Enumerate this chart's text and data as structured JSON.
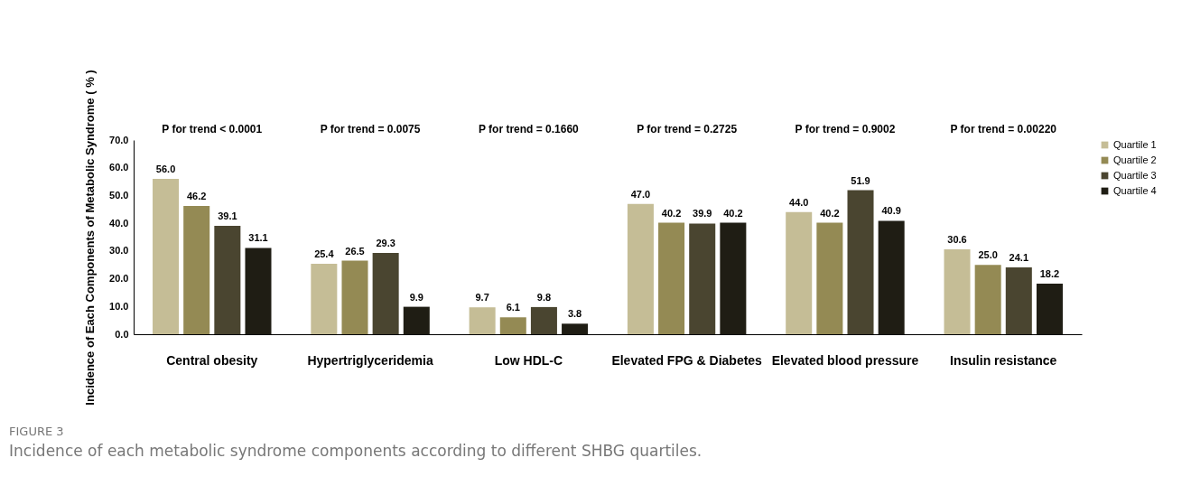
{
  "chart_data": {
    "type": "bar",
    "ylabel": "Incidence of Each Components of Metabolic Syndrome ( % )",
    "categories": [
      "Central obesity",
      "Hypertriglyceridemia",
      "Low HDL-C",
      "Elevated FPG & Diabetes",
      "Elevated blood pressure",
      "Insulin resistance"
    ],
    "series": [
      {
        "name": "Quartile 1",
        "color": "#c5bd96",
        "values": [
          56.0,
          25.4,
          9.7,
          47.0,
          44.0,
          30.6
        ],
        "value_labels": [
          "56.0",
          "25.4",
          "9.7",
          "47.0",
          "44.0",
          "30.6"
        ]
      },
      {
        "name": "Quartile 2",
        "color": "#948a54",
        "values": [
          46.2,
          26.5,
          6.1,
          40.2,
          40.2,
          25.0
        ],
        "value_labels": [
          "46.2",
          "26.5",
          "6.1",
          "40.2",
          "40.2",
          "25.0"
        ]
      },
      {
        "name": "Quartile 3",
        "color": "#4a4530",
        "values": [
          39.1,
          29.3,
          9.8,
          39.9,
          51.9,
          24.1
        ],
        "value_labels": [
          "39.1",
          "29.3",
          "9.8",
          "39.9",
          "51.9",
          "24.1"
        ]
      },
      {
        "name": "Quartile 4",
        "color": "#1f1d14",
        "values": [
          31.1,
          9.9,
          3.8,
          40.2,
          40.9,
          18.2
        ],
        "value_labels": [
          "31.1",
          "9.9",
          "3.8",
          "40.2",
          "40.9",
          "18.2"
        ]
      }
    ],
    "ylim": [
      0,
      70
    ],
    "yticks": [
      {
        "value": 0,
        "label": "0.0"
      },
      {
        "value": 10,
        "label": "10.0"
      },
      {
        "value": 20,
        "label": "20.0"
      },
      {
        "value": 30,
        "label": "30.0"
      },
      {
        "value": 40,
        "label": "40.0"
      },
      {
        "value": 50,
        "label": "50.0"
      },
      {
        "value": 60,
        "label": "60.0"
      },
      {
        "value": 70,
        "label": "70.0"
      }
    ],
    "grid": false,
    "legend": "right",
    "annotations": [
      "P for trend  <  0.0001",
      "P for trend = 0.0075",
      "P for trend = 0.1660",
      "P for trend = 0.2725",
      "P for trend = 0.9002",
      "P for trend = 0.00220",
      "FIGURE 3",
      "Incidence of each metabolic syndrome components according to different SHBG quartiles."
    ]
  }
}
